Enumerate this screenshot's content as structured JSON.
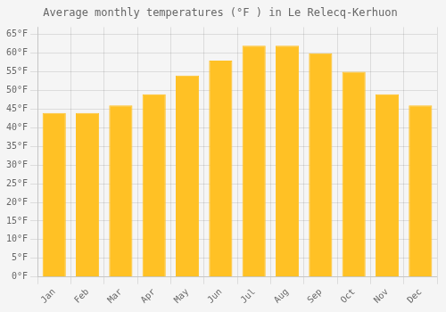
{
  "chart_data": {
    "type": "bar",
    "title": "Average monthly temperatures (°F ) in Le Relecq-Kerhuon",
    "categories": [
      "Jan",
      "Feb",
      "Mar",
      "Apr",
      "May",
      "Jun",
      "Jul",
      "Aug",
      "Sep",
      "Oct",
      "Nov",
      "Dec"
    ],
    "values": [
      44,
      44,
      46,
      49,
      54,
      58,
      62,
      62,
      60,
      55,
      49,
      46
    ],
    "color": "#FFC125",
    "ylim": [
      0,
      67
    ],
    "yticks": [
      {
        "value": 0,
        "label": "0°F"
      },
      {
        "value": 5,
        "label": "5°F"
      },
      {
        "value": 10,
        "label": "10°F"
      },
      {
        "value": 15,
        "label": "15°F"
      },
      {
        "value": 20,
        "label": "20°F"
      },
      {
        "value": 25,
        "label": "25°F"
      },
      {
        "value": 30,
        "label": "30°F"
      },
      {
        "value": 35,
        "label": "35°F"
      },
      {
        "value": 40,
        "label": "40°F"
      },
      {
        "value": 45,
        "label": "45°F"
      },
      {
        "value": 50,
        "label": "50°F"
      },
      {
        "value": 55,
        "label": "55°F"
      },
      {
        "value": 60,
        "label": "60°F"
      },
      {
        "value": 65,
        "label": "65°F"
      }
    ],
    "grid": true
  }
}
